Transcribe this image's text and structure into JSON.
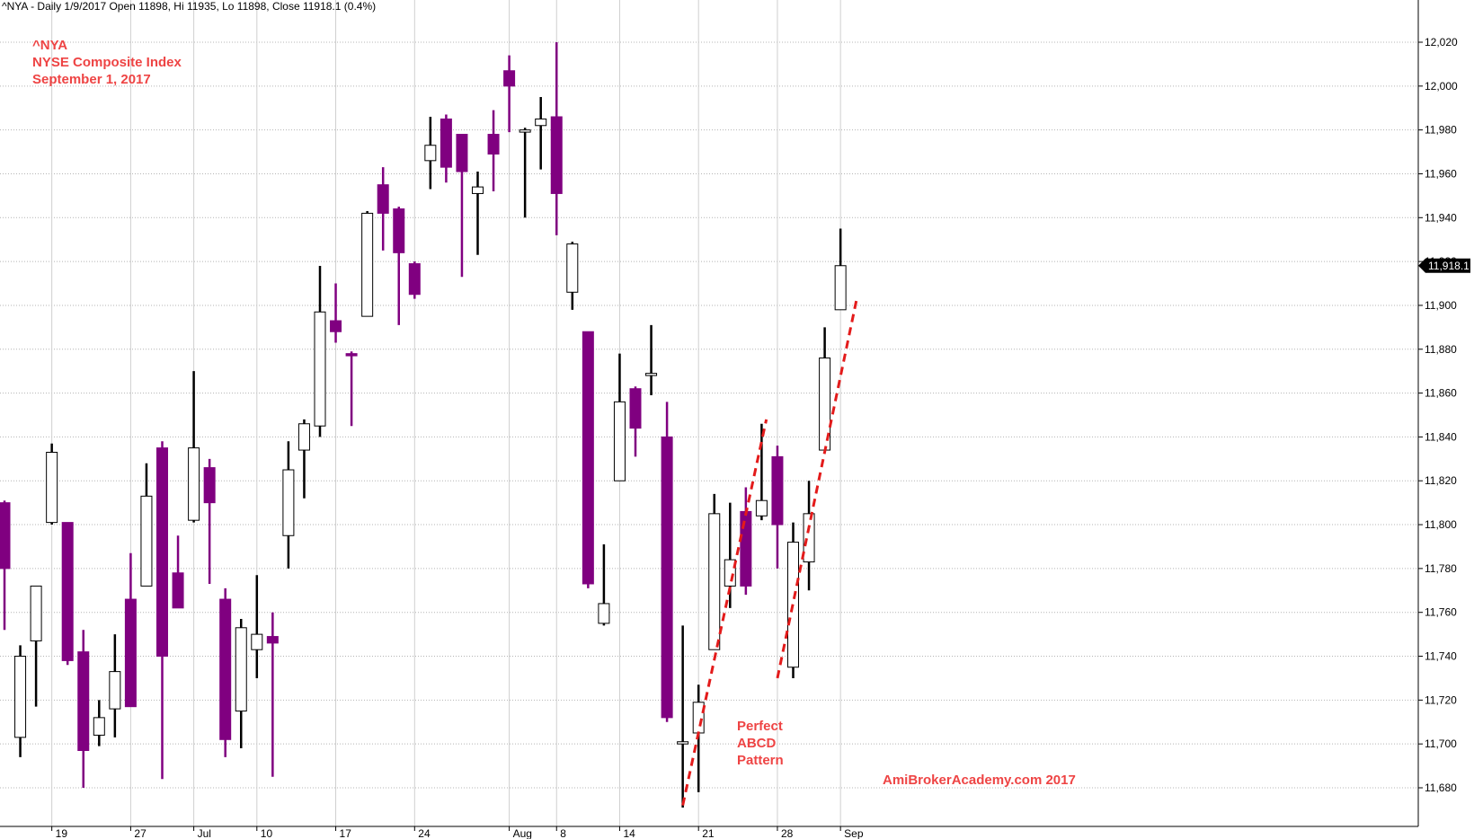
{
  "header": {
    "text": "^NYA - Daily 1/9/2017 Open 11898, Hi 11935, Lo 11898, Close 11918.1 (0.4%)"
  },
  "chart_title": {
    "line1": "^NYA",
    "line2": "NYSE Composite Index",
    "line3": "September 1, 2017"
  },
  "annotation": {
    "line1": "Perfect",
    "line2": "ABCD",
    "line3": "Pattern"
  },
  "watermark": "AmiBrokerAcademy.com  2017",
  "colors": {
    "up_body": "#ffffff",
    "down_body": "#800080",
    "up_wick": "#000000",
    "down_wick": "#800080",
    "trend_line": "#e31b1b",
    "text_red": "#ee4444",
    "grid": "#b4b4b4"
  },
  "chart_data": {
    "type": "candlestick",
    "ylim": [
      11670,
      12030
    ],
    "yticks": [
      11680,
      11700,
      11720,
      11740,
      11760,
      11780,
      11800,
      11820,
      11840,
      11860,
      11880,
      11900,
      11920,
      11940,
      11960,
      11980,
      12000,
      12020
    ],
    "ytick_labels": [
      "11,680",
      "11,700",
      "11,720",
      "11,740",
      "11,760",
      "11,780",
      "11,800",
      "11,820",
      "11,840",
      "11,860",
      "11,880",
      "11,900",
      "11,920",
      "11,940",
      "11,960",
      "11,980",
      "12,000",
      "12,020"
    ],
    "last_price_label": "11,918.1",
    "last_price": 11918.1,
    "x_labels": [
      {
        "label": "19",
        "index": 3
      },
      {
        "label": "27",
        "index": 8
      },
      {
        "label": "Jul",
        "index": 12
      },
      {
        "label": "10",
        "index": 16
      },
      {
        "label": "17",
        "index": 21
      },
      {
        "label": "24",
        "index": 26
      },
      {
        "label": "Aug",
        "index": 32
      },
      {
        "label": "8",
        "index": 35
      },
      {
        "label": "14",
        "index": 39
      },
      {
        "label": "21",
        "index": 44
      },
      {
        "label": "28",
        "index": 49
      },
      {
        "label": "Sep",
        "index": 53
      }
    ],
    "candles": [
      {
        "o": 11810,
        "h": 11811,
        "l": 11752,
        "c": 11780
      },
      {
        "o": 11703,
        "h": 11745,
        "l": 11694,
        "c": 11740
      },
      {
        "o": 11747,
        "h": 11772,
        "l": 11717,
        "c": 11772
      },
      {
        "o": 11801,
        "h": 11837,
        "l": 11800,
        "c": 11833
      },
      {
        "o": 11801,
        "h": 11801,
        "l": 11736,
        "c": 11738
      },
      {
        "o": 11742,
        "h": 11752,
        "l": 11680,
        "c": 11697
      },
      {
        "o": 11704,
        "h": 11720,
        "l": 11699,
        "c": 11712
      },
      {
        "o": 11716,
        "h": 11750,
        "l": 11703,
        "c": 11733
      },
      {
        "o": 11766,
        "h": 11787,
        "l": 11717,
        "c": 11717
      },
      {
        "o": 11772,
        "h": 11828,
        "l": 11772,
        "c": 11813
      },
      {
        "o": 11835,
        "h": 11838,
        "l": 11684,
        "c": 11740
      },
      {
        "o": 11778,
        "h": 11795,
        "l": 11762,
        "c": 11762
      },
      {
        "o": 11802,
        "h": 11870,
        "l": 11801,
        "c": 11835
      },
      {
        "o": 11826,
        "h": 11830,
        "l": 11773,
        "c": 11810
      },
      {
        "o": 11766,
        "h": 11771,
        "l": 11694,
        "c": 11702
      },
      {
        "o": 11715,
        "h": 11757,
        "l": 11698,
        "c": 11753
      },
      {
        "o": 11743,
        "h": 11777,
        "l": 11730,
        "c": 11750
      },
      {
        "o": 11749,
        "h": 11760,
        "l": 11685,
        "c": 11746
      },
      {
        "o": 11795,
        "h": 11838,
        "l": 11780,
        "c": 11825
      },
      {
        "o": 11834,
        "h": 11848,
        "l": 11812,
        "c": 11846
      },
      {
        "o": 11845,
        "h": 11918,
        "l": 11840,
        "c": 11897
      },
      {
        "o": 11893,
        "h": 11910,
        "l": 11883,
        "c": 11888
      },
      {
        "o": 11878,
        "h": 11879,
        "l": 11845,
        "c": 11877
      },
      {
        "o": 11895,
        "h": 11943,
        "l": 11895,
        "c": 11942
      },
      {
        "o": 11955,
        "h": 11963,
        "l": 11925,
        "c": 11942
      },
      {
        "o": 11944,
        "h": 11945,
        "l": 11891,
        "c": 11924
      },
      {
        "o": 11919,
        "h": 11920,
        "l": 11903,
        "c": 11905
      },
      {
        "o": 11966,
        "h": 11986,
        "l": 11953,
        "c": 11973
      },
      {
        "o": 11985,
        "h": 11987,
        "l": 11956,
        "c": 11963
      },
      {
        "o": 11978,
        "h": 11978,
        "l": 11913,
        "c": 11961
      },
      {
        "o": 11951,
        "h": 11961,
        "l": 11923,
        "c": 11954
      },
      {
        "o": 11978,
        "h": 11989,
        "l": 11952,
        "c": 11969
      },
      {
        "o": 12007,
        "h": 12014,
        "l": 11979,
        "c": 12000
      },
      {
        "o": 11979,
        "h": 11981,
        "l": 11940,
        "c": 11980
      },
      {
        "o": 11982,
        "h": 11995,
        "l": 11962,
        "c": 11985
      },
      {
        "o": 11986,
        "h": 12020,
        "l": 11932,
        "c": 11951
      },
      {
        "o": 11906,
        "h": 11929,
        "l": 11898,
        "c": 11928
      },
      {
        "o": 11888,
        "h": 11888,
        "l": 11771,
        "c": 11773
      },
      {
        "o": 11755,
        "h": 11791,
        "l": 11754,
        "c": 11764
      },
      {
        "o": 11820,
        "h": 11878,
        "l": 11820,
        "c": 11856
      },
      {
        "o": 11862,
        "h": 11863,
        "l": 11831,
        "c": 11844
      },
      {
        "o": 11868,
        "h": 11891,
        "l": 11859,
        "c": 11869
      },
      {
        "o": 11840,
        "h": 11856,
        "l": 11710,
        "c": 11712
      },
      {
        "o": 11700,
        "h": 11754,
        "l": 11671,
        "c": 11701
      },
      {
        "o": 11705,
        "h": 11727,
        "l": 11678,
        "c": 11719
      },
      {
        "o": 11743,
        "h": 11814,
        "l": 11743,
        "c": 11805
      },
      {
        "o": 11772,
        "h": 11810,
        "l": 11762,
        "c": 11784
      },
      {
        "o": 11806,
        "h": 11817,
        "l": 11768,
        "c": 11772
      },
      {
        "o": 11804,
        "h": 11846,
        "l": 11802,
        "c": 11811
      },
      {
        "o": 11831,
        "h": 11836,
        "l": 11780,
        "c": 11800
      },
      {
        "o": 11735,
        "h": 11801,
        "l": 11730,
        "c": 11792
      },
      {
        "o": 11783,
        "h": 11820,
        "l": 11770,
        "c": 11805
      },
      {
        "o": 11834,
        "h": 11890,
        "l": 11834,
        "c": 11876
      },
      {
        "o": 11898,
        "h": 11935,
        "l": 11898,
        "c": 11918.1
      }
    ],
    "trend_lines": [
      {
        "from": {
          "index": 43.0,
          "value": 11672
        },
        "to": {
          "index": 48.3,
          "value": 11848
        }
      },
      {
        "from": {
          "index": 49.0,
          "value": 11730
        },
        "to": {
          "index": 54.0,
          "value": 11902
        }
      }
    ]
  }
}
